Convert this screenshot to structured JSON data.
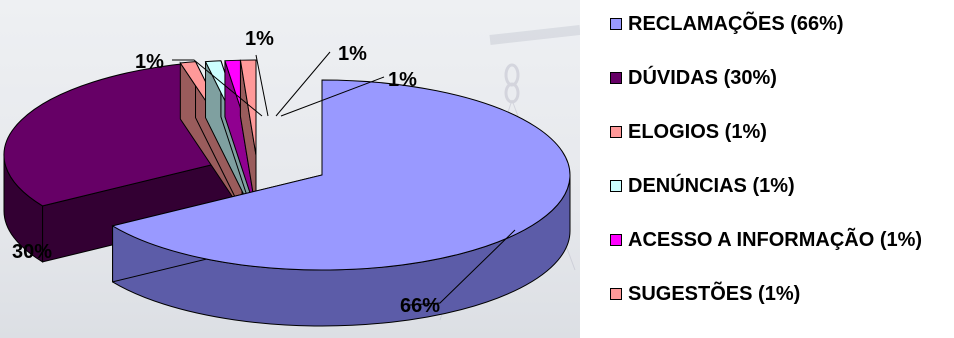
{
  "chart_data": {
    "type": "pie",
    "title": "",
    "categories": [
      "RECLAMAÇÕES",
      "DÚVIDAS",
      "ELOGIOS",
      "DENÚNCIAS",
      "ACESSO A INFORMAÇÃO",
      "SUGESTÕES"
    ],
    "values": [
      66,
      30,
      1,
      1,
      1,
      1
    ],
    "data_labels": [
      "66%",
      "30%",
      "1%",
      "1%",
      "1%",
      "1%"
    ],
    "colors": [
      "#9999ff",
      "#660066",
      "#ff9999",
      "#ccffff",
      "#ff00ff",
      "#ff9999"
    ],
    "side_colors": [
      "#5c5ca8",
      "#330033",
      "#9a5c5c",
      "#7fa0a0",
      "#900090",
      "#9a5c5c"
    ],
    "legend": {
      "placement": "right",
      "entries": [
        "RECLAMAÇÕES (66%)",
        "DÚVIDAS (30%)",
        "ELOGIOS (1%)",
        "DENÚNCIAS (1%)",
        "ACESSO A INFORMAÇÃO (1%)",
        "SUGESTÕES (1%)"
      ]
    }
  }
}
